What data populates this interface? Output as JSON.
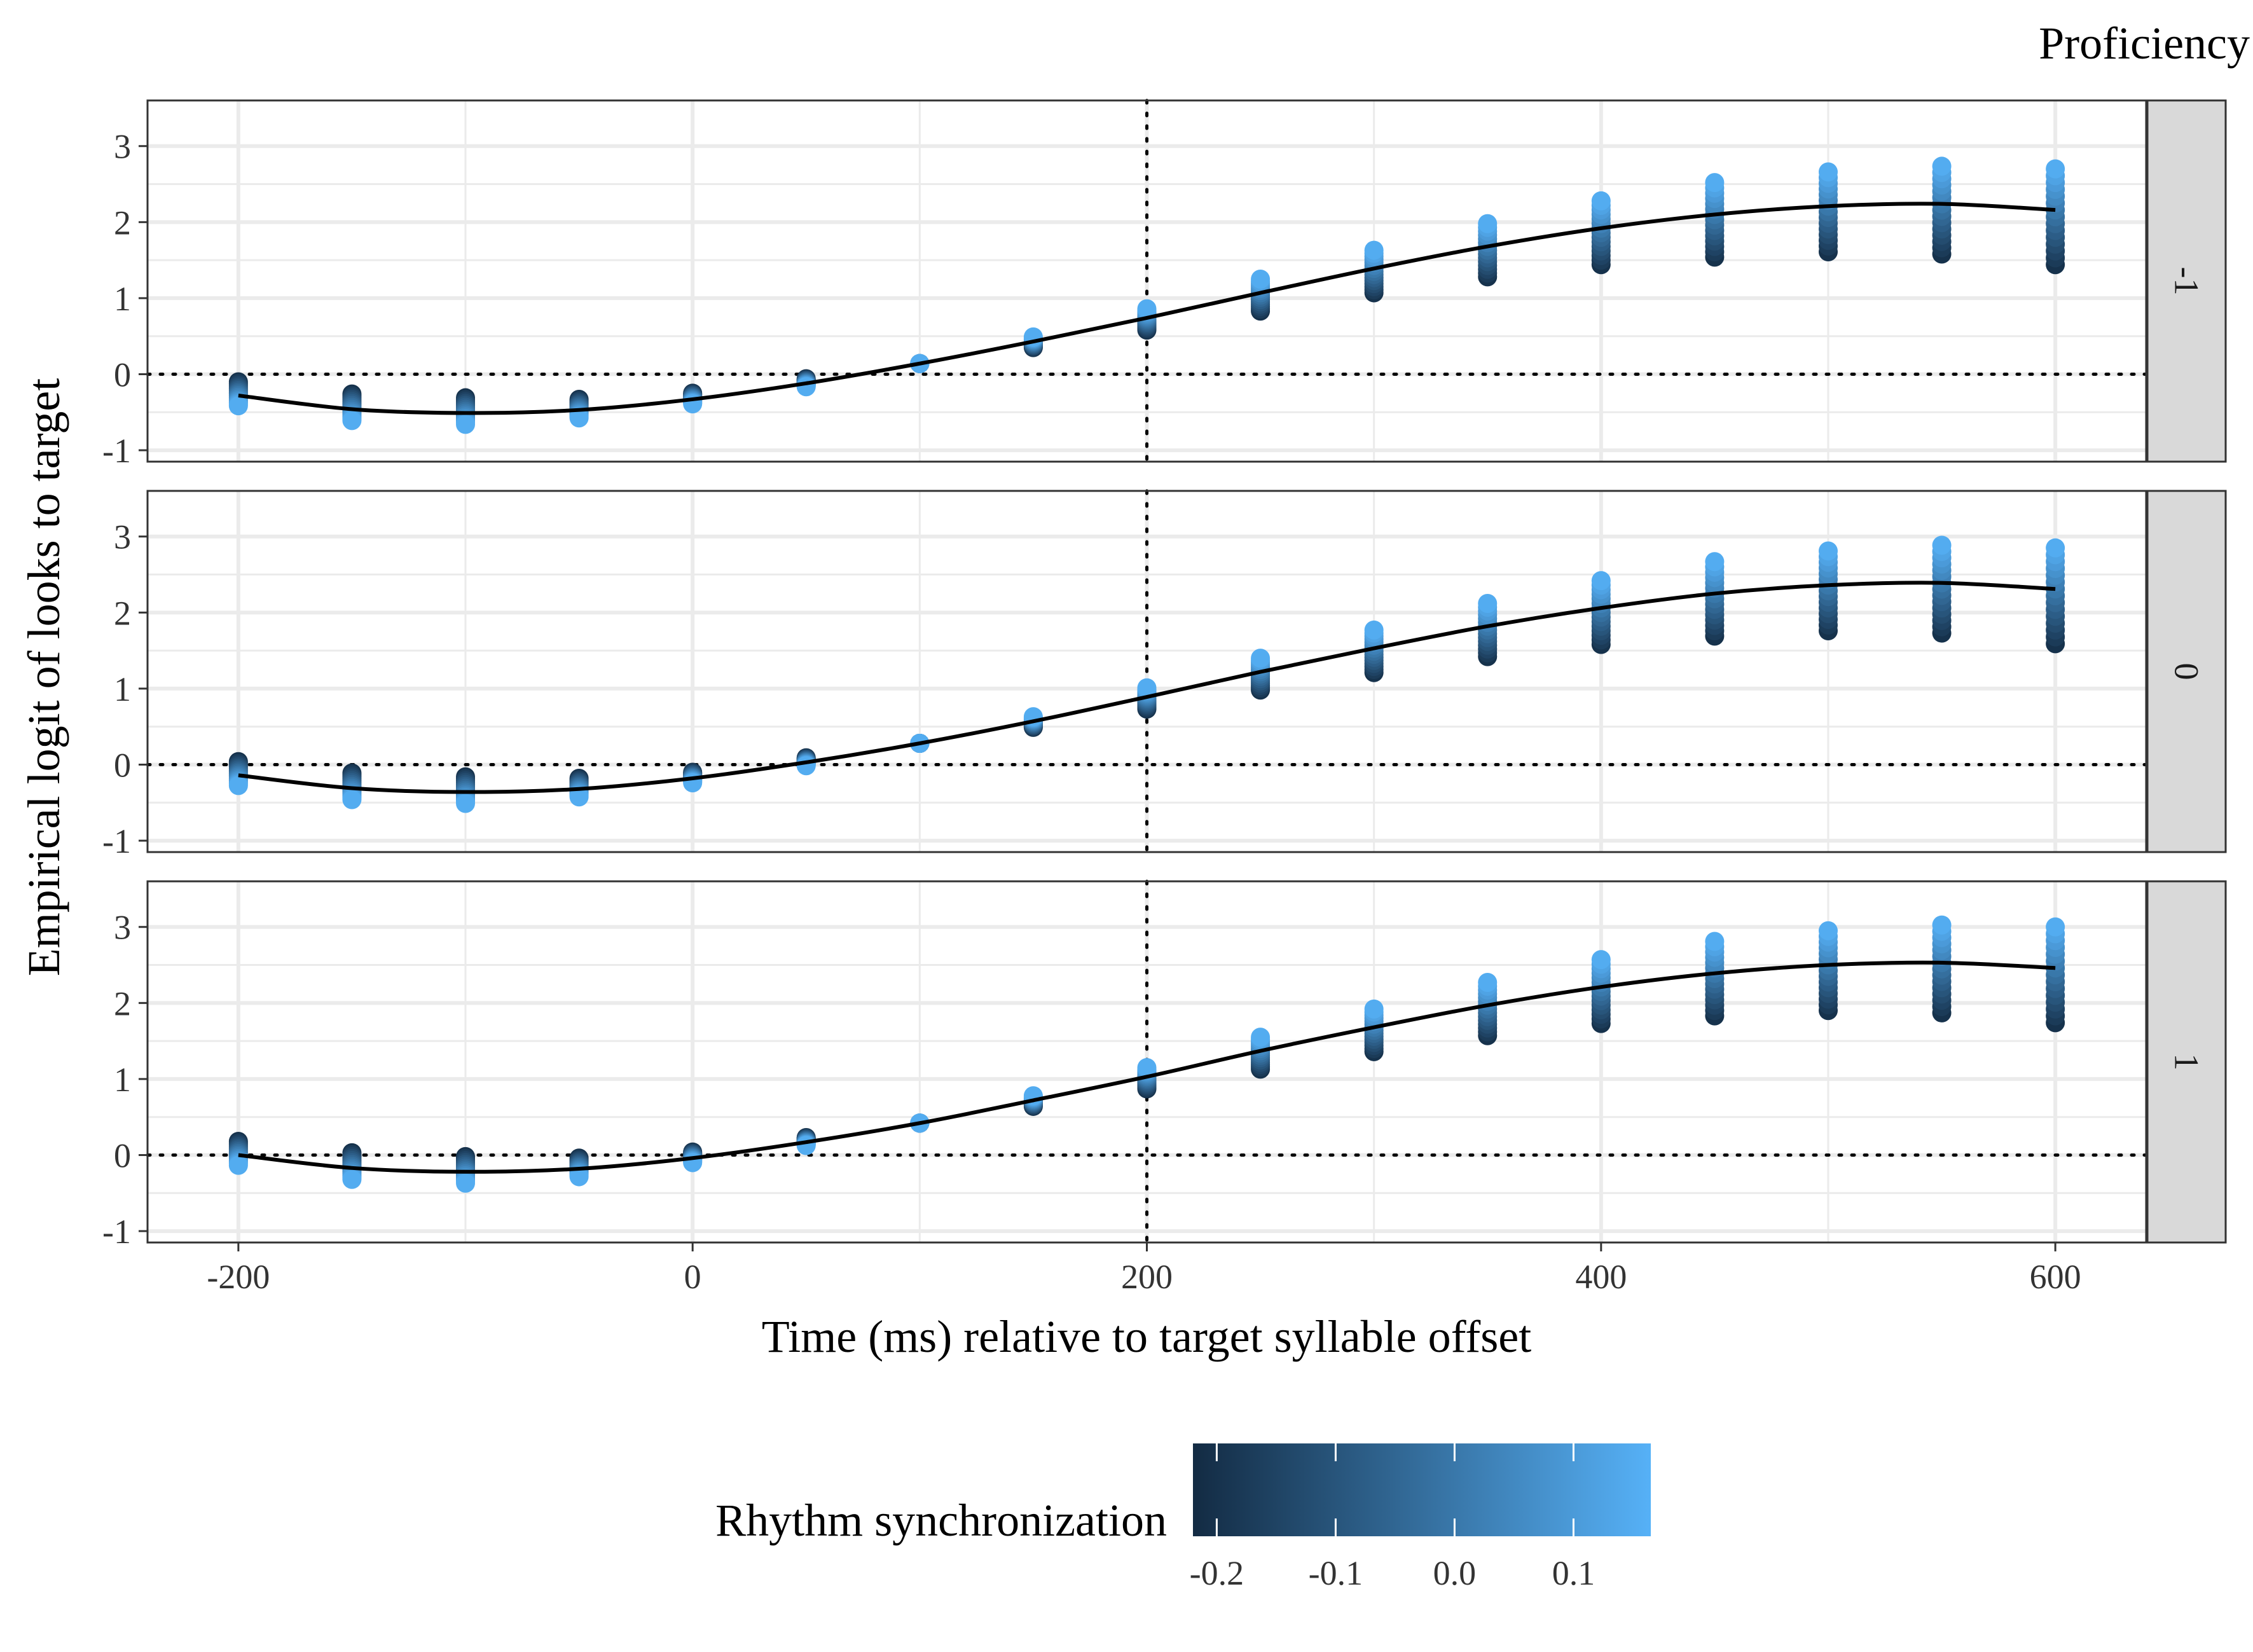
{
  "chart_data": {
    "type": "scatter",
    "facet_title": "Proficiency",
    "xlabel": "Time (ms) relative to target syllable offset",
    "ylabel": "Empirical logit of looks to target",
    "xlim": [
      -240,
      640
    ],
    "ylim": [
      -1.15,
      3.6
    ],
    "x_ticks": [
      -200,
      0,
      200,
      400,
      600
    ],
    "x_tick_labels": [
      "-200",
      "0",
      "200",
      "400",
      "600"
    ],
    "y_ticks": [
      -1,
      0,
      1,
      2,
      3
    ],
    "y_tick_labels": [
      "-1",
      "0",
      "1",
      "2",
      "3"
    ],
    "grid": true,
    "reference_lines": {
      "x": 200,
      "y": 0,
      "style": "dotted"
    },
    "times": [
      -200,
      -150,
      -100,
      -50,
      0,
      50,
      100,
      150,
      200,
      250,
      300,
      350,
      400,
      450,
      500,
      550,
      600
    ],
    "rhythm_values": [
      -0.2,
      -0.175,
      -0.15,
      -0.125,
      -0.1,
      -0.075,
      -0.05,
      -0.025,
      0.0,
      0.025,
      0.05,
      0.075,
      0.1,
      0.125,
      0.15
    ],
    "legend": {
      "title": "Rhythm synchronization",
      "position": "bottom",
      "range": [
        -0.22,
        0.165
      ],
      "ticks": [
        -0.2,
        -0.1,
        0.0,
        0.1
      ],
      "tick_labels": [
        "-0.2",
        "-0.1",
        "0.0",
        "0.1"
      ],
      "color_low": "#132B43",
      "color_high": "#56B1F7"
    },
    "colors": {
      "fit_line": "#000000",
      "strip_fill": "#D9D9D9",
      "grid": "#EBEBEB",
      "panel_border": "#333333"
    },
    "panels": [
      {
        "strip_label": "-1",
        "fit": [
          -0.28,
          -0.46,
          -0.51,
          -0.47,
          -0.33,
          -0.12,
          0.14,
          0.43,
          0.74,
          1.07,
          1.39,
          1.68,
          1.92,
          2.1,
          2.21,
          2.24,
          2.16
        ],
        "slope": [
          -0.9,
          -1.0,
          -1.0,
          -0.7,
          -0.4,
          -0.3,
          0.0,
          0.4,
          0.8,
          1.2,
          1.6,
          2.0,
          2.4,
          2.8,
          3.0,
          3.3,
          3.6
        ],
        "pt_min": [
          -0.64,
          -0.78,
          -0.78,
          -0.65,
          -0.47,
          -0.2,
          0.1,
          0.3,
          0.53,
          0.76,
          0.97,
          1.15,
          1.3,
          1.4,
          1.43,
          1.33,
          1.16
        ],
        "pt_max": [
          0.27,
          0.05,
          -0.1,
          -0.18,
          -0.16,
          -0.04,
          0.17,
          0.55,
          0.92,
          1.33,
          1.7,
          2.04,
          2.34,
          2.6,
          2.78,
          2.87,
          2.86
        ]
      },
      {
        "strip_label": "0",
        "fit": [
          -0.14,
          -0.31,
          -0.36,
          -0.32,
          -0.18,
          0.03,
          0.28,
          0.57,
          0.89,
          1.22,
          1.53,
          1.82,
          2.06,
          2.25,
          2.36,
          2.39,
          2.31
        ],
        "slope": [
          -0.9,
          -1.0,
          -1.0,
          -0.7,
          -0.4,
          -0.3,
          0.0,
          0.4,
          0.8,
          1.2,
          1.6,
          2.0,
          2.4,
          2.8,
          3.0,
          3.3,
          3.6
        ],
        "pt_min": [
          -0.5,
          -0.64,
          -0.63,
          -0.49,
          -0.31,
          -0.05,
          0.24,
          0.44,
          0.67,
          0.9,
          1.11,
          1.3,
          1.45,
          1.55,
          1.57,
          1.48,
          1.32
        ],
        "pt_max": [
          0.41,
          0.2,
          0.03,
          -0.03,
          0.0,
          0.1,
          0.32,
          0.67,
          1.07,
          1.47,
          1.84,
          2.18,
          2.48,
          2.73,
          2.93,
          3.01,
          2.99
        ]
      },
      {
        "strip_label": "1",
        "fit": [
          0.0,
          -0.17,
          -0.22,
          -0.18,
          -0.04,
          0.17,
          0.42,
          0.72,
          1.03,
          1.37,
          1.68,
          1.97,
          2.21,
          2.39,
          2.5,
          2.53,
          2.46
        ],
        "slope": [
          -0.9,
          -1.0,
          -1.0,
          -0.7,
          -0.4,
          -0.3,
          0.0,
          0.4,
          0.8,
          1.2,
          1.6,
          2.0,
          2.4,
          2.8,
          3.0,
          3.3,
          3.6
        ],
        "pt_min": [
          -0.38,
          -0.5,
          -0.48,
          -0.36,
          -0.17,
          0.09,
          0.38,
          0.59,
          0.81,
          1.04,
          1.25,
          1.44,
          1.59,
          1.69,
          1.71,
          1.62,
          1.46
        ],
        "pt_max": [
          0.55,
          0.32,
          0.17,
          0.12,
          0.14,
          0.26,
          0.46,
          0.82,
          1.21,
          1.61,
          1.98,
          2.33,
          2.63,
          2.88,
          3.07,
          3.15,
          3.14
        ]
      }
    ]
  }
}
